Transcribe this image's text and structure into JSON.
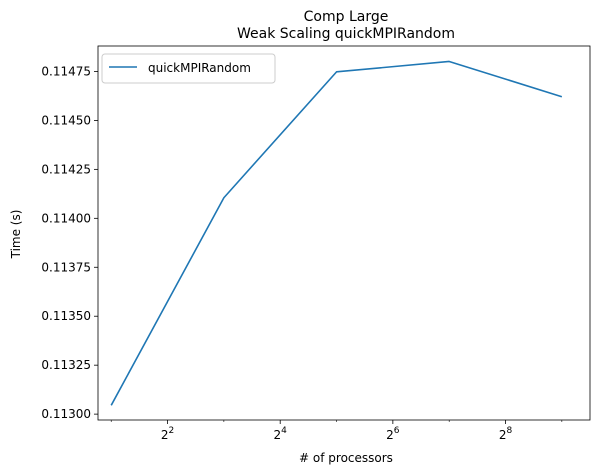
{
  "chart_data": {
    "type": "line",
    "title": "Comp Large",
    "subtitle": "Weak Scaling quickMPIRandom",
    "xlabel": "# of processors",
    "ylabel": "Time (s)",
    "x_scale": "log2",
    "xlim": [
      1.7,
      724
    ],
    "ylim": [
      0.11297,
      0.11488
    ],
    "x_ticks": [
      {
        "value": 4,
        "base": "2",
        "exp": "2"
      },
      {
        "value": 16,
        "base": "2",
        "exp": "4"
      },
      {
        "value": 64,
        "base": "2",
        "exp": "6"
      },
      {
        "value": 256,
        "base": "2",
        "exp": "8"
      }
    ],
    "y_ticks": [
      {
        "value": 0.113,
        "label": "0.11300"
      },
      {
        "value": 0.11325,
        "label": "0.11325"
      },
      {
        "value": 0.1135,
        "label": "0.11350"
      },
      {
        "value": 0.11375,
        "label": "0.11375"
      },
      {
        "value": 0.114,
        "label": "0.11400"
      },
      {
        "value": 0.11425,
        "label": "0.11425"
      },
      {
        "value": 0.1145,
        "label": "0.11450"
      },
      {
        "value": 0.11475,
        "label": "0.11475"
      }
    ],
    "legend_position": "top-left",
    "grid": false,
    "series": [
      {
        "name": "quickMPIRandom",
        "color": "#1f77b4",
        "x": [
          2,
          8,
          32,
          128,
          512
        ],
        "y": [
          0.113045,
          0.114105,
          0.114748,
          0.114801,
          0.114621
        ]
      }
    ]
  }
}
